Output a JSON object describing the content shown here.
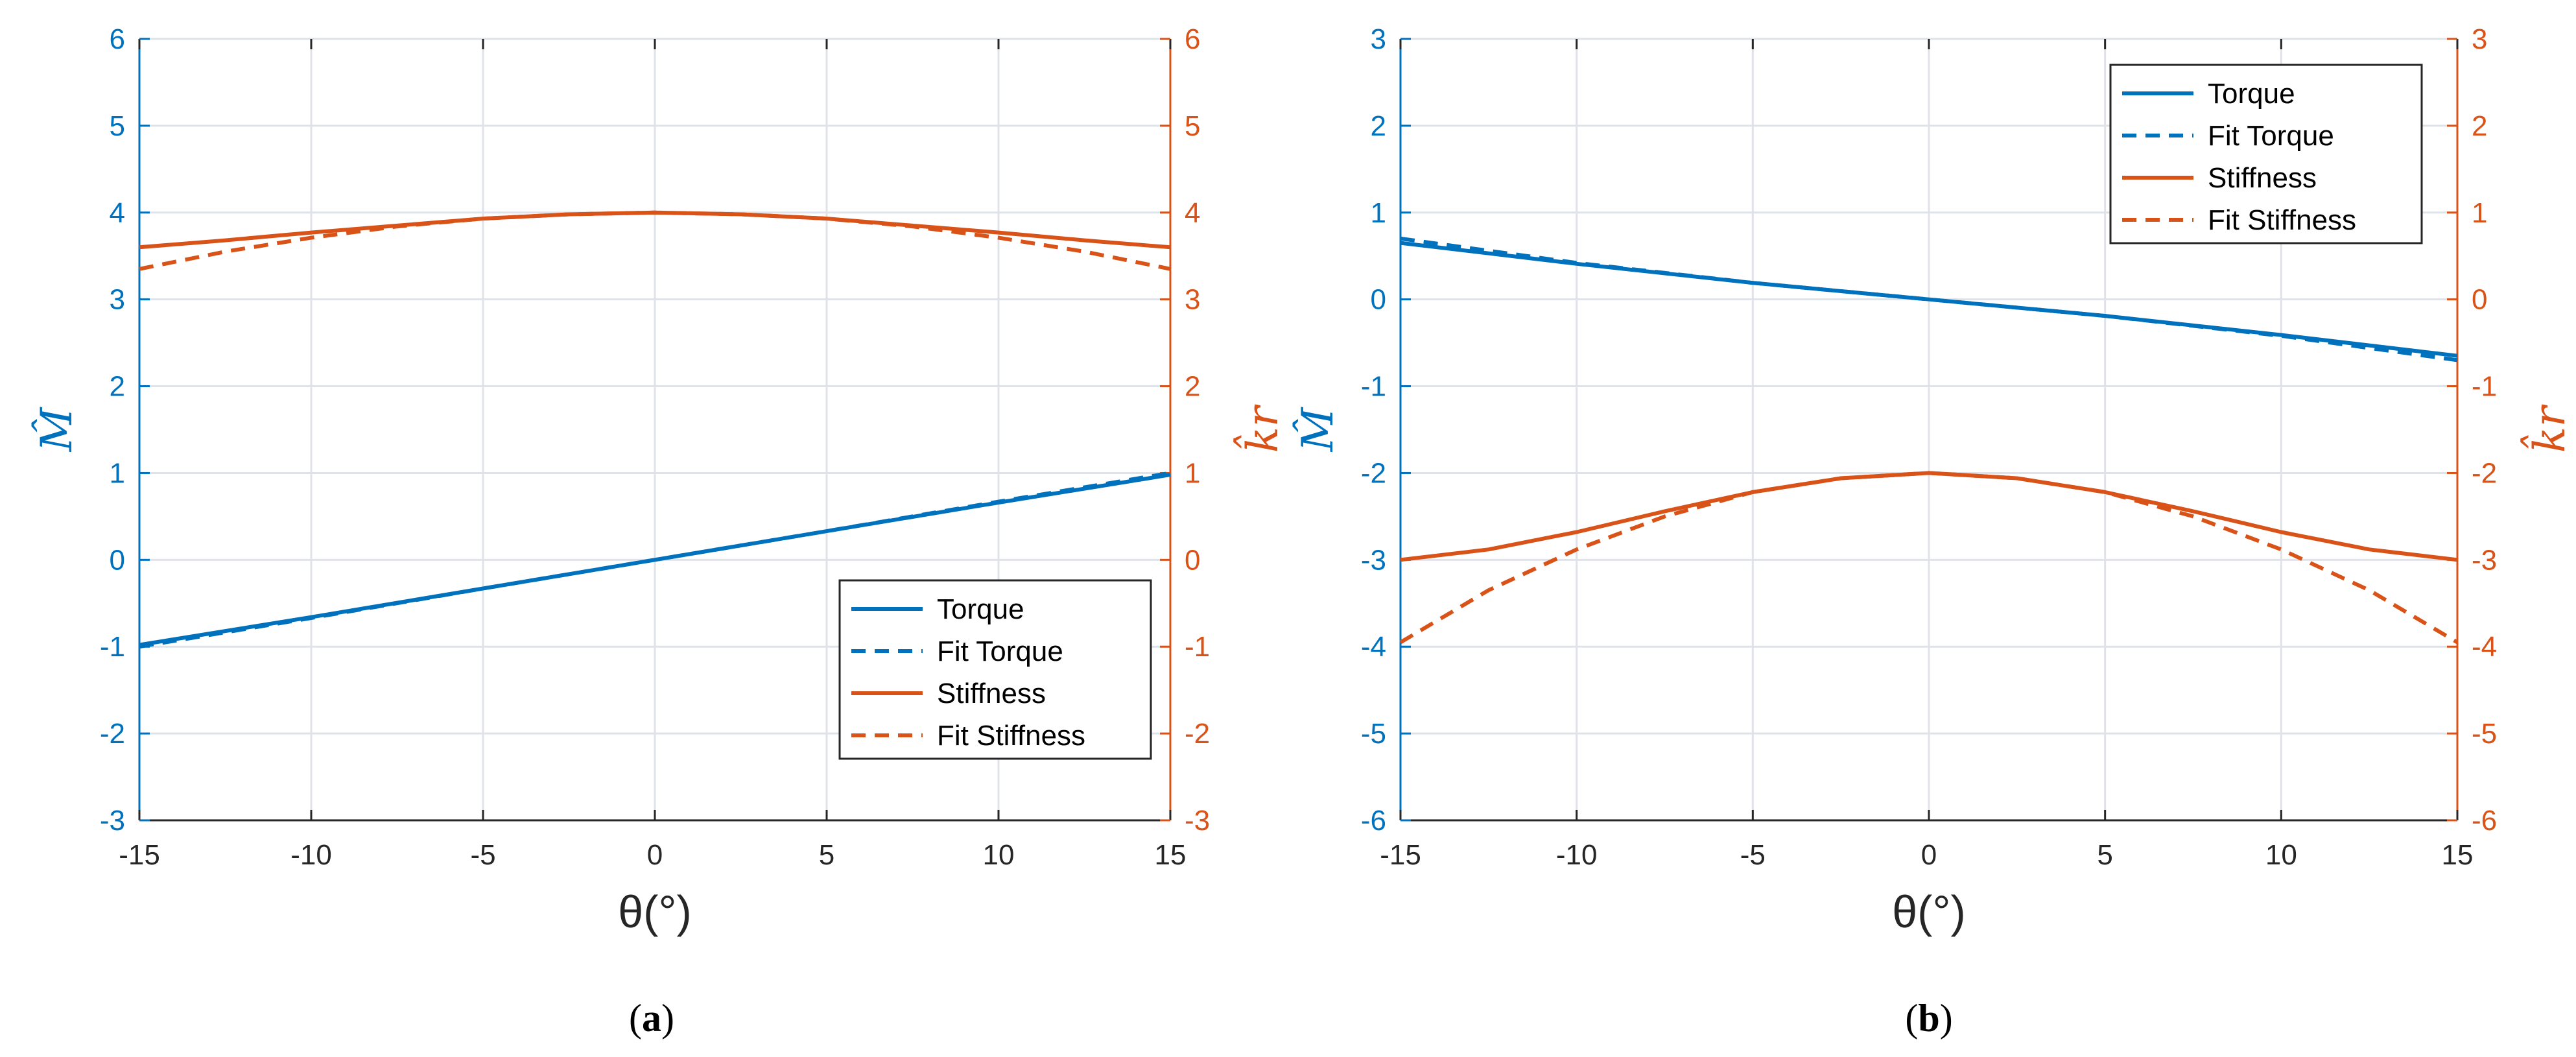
{
  "colors": {
    "torque": "#0072BD",
    "stiffness": "#D95319",
    "axis": "#262626"
  },
  "chart_data": [
    {
      "type": "line",
      "caption_letter": "a",
      "xlabel": "θ(°)",
      "ylabel_left": "M̂",
      "ylabel_right": "k̂r",
      "xlim": [
        -15,
        15
      ],
      "xticks": [
        "-15",
        "-10",
        "-5",
        "0",
        "5",
        "10",
        "15"
      ],
      "ylim_left": [
        -3,
        6
      ],
      "yticks_left": [
        "-3",
        "-2",
        "-1",
        "0",
        "1",
        "2",
        "3",
        "4",
        "5",
        "6"
      ],
      "ylim_right": [
        -3,
        6
      ],
      "yticks_right": [
        "-3",
        "-2",
        "-1",
        "0",
        "1",
        "2",
        "3",
        "4",
        "5",
        "6"
      ],
      "grid": true,
      "legend_position": "bottom-right",
      "series": [
        {
          "name": "Torque",
          "axis": "left",
          "color": "torque",
          "dash": "solid",
          "x": [
            -15,
            -10,
            -5,
            0,
            5,
            10,
            15
          ],
          "y": [
            -0.98,
            -0.66,
            -0.33,
            0,
            0.33,
            0.66,
            0.98
          ]
        },
        {
          "name": "Fit Torque",
          "axis": "left",
          "color": "torque",
          "dash": "dashed",
          "x": [
            -15,
            -10,
            -5,
            0,
            5,
            10,
            15
          ],
          "y": [
            -1.0,
            -0.67,
            -0.33,
            0,
            0.33,
            0.67,
            1.0
          ]
        },
        {
          "name": "Stiffness",
          "axis": "right",
          "color": "stiffness",
          "dash": "solid",
          "x": [
            -15,
            -12.5,
            -10,
            -7.5,
            -5,
            -2.5,
            0,
            2.5,
            5,
            7.5,
            10,
            12.5,
            15
          ],
          "y": [
            3.6,
            3.68,
            3.77,
            3.85,
            3.93,
            3.98,
            4.0,
            3.98,
            3.93,
            3.85,
            3.77,
            3.68,
            3.6
          ]
        },
        {
          "name": "Fit Stiffness",
          "axis": "right",
          "color": "stiffness",
          "dash": "dashed",
          "x": [
            -15,
            -12.5,
            -10,
            -7.5,
            -5,
            -2.5,
            0,
            2.5,
            5,
            7.5,
            10,
            12.5,
            15
          ],
          "y": [
            3.35,
            3.55,
            3.71,
            3.84,
            3.93,
            3.98,
            4.0,
            3.98,
            3.93,
            3.84,
            3.71,
            3.55,
            3.35
          ]
        }
      ]
    },
    {
      "type": "line",
      "caption_letter": "b",
      "xlabel": "θ(°)",
      "ylabel_left": "M̂",
      "ylabel_right": "k̂r",
      "xlim": [
        -15,
        15
      ],
      "xticks": [
        "-15",
        "-10",
        "-5",
        "0",
        "5",
        "10",
        "15"
      ],
      "ylim_left": [
        -6,
        3
      ],
      "yticks_left": [
        "-6",
        "-5",
        "-4",
        "-3",
        "-2",
        "-1",
        "0",
        "1",
        "2",
        "3"
      ],
      "ylim_right": [
        -6,
        3
      ],
      "yticks_right": [
        "-6",
        "-5",
        "-4",
        "-3",
        "-2",
        "-1",
        "0",
        "1",
        "2",
        "3"
      ],
      "grid": true,
      "legend_position": "top-right",
      "series": [
        {
          "name": "Torque",
          "axis": "left",
          "color": "torque",
          "dash": "solid",
          "x": [
            -15,
            -10,
            -5,
            0,
            5,
            10,
            15
          ],
          "y": [
            0.65,
            0.41,
            0.19,
            0,
            -0.19,
            -0.41,
            -0.65
          ]
        },
        {
          "name": "Fit Torque",
          "axis": "left",
          "color": "torque",
          "dash": "dashed",
          "x": [
            -15,
            -10,
            -5,
            0,
            5,
            10,
            15
          ],
          "y": [
            0.7,
            0.42,
            0.19,
            0,
            -0.19,
            -0.42,
            -0.7
          ]
        },
        {
          "name": "Stiffness",
          "axis": "right",
          "color": "stiffness",
          "dash": "solid",
          "x": [
            -15,
            -12.5,
            -10,
            -7.5,
            -5,
            -2.5,
            0,
            2.5,
            5,
            7.5,
            10,
            12.5,
            15
          ],
          "y": [
            -3.0,
            -2.88,
            -2.68,
            -2.44,
            -2.22,
            -2.06,
            -2.0,
            -2.06,
            -2.22,
            -2.44,
            -2.68,
            -2.88,
            -3.0
          ]
        },
        {
          "name": "Fit Stiffness",
          "axis": "right",
          "color": "stiffness",
          "dash": "dashed",
          "x": [
            -15,
            -12.5,
            -10,
            -7.5,
            -5,
            -2.5,
            0,
            2.5,
            5,
            7.5,
            10,
            12.5,
            15
          ],
          "y": [
            -3.95,
            -3.35,
            -2.88,
            -2.5,
            -2.22,
            -2.06,
            -2.0,
            -2.06,
            -2.22,
            -2.5,
            -2.88,
            -3.35,
            -3.95
          ]
        }
      ]
    }
  ]
}
